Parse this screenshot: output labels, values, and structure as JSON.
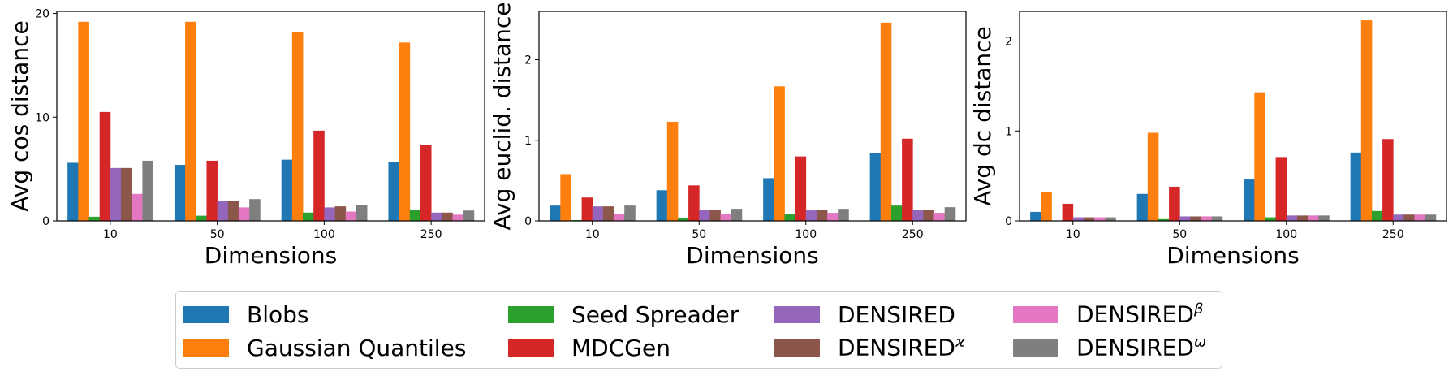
{
  "colors": {
    "Blobs": "#1f77b4",
    "Gaussian Quantiles": "#ff7f0e",
    "Seed Spreader": "#2ca02c",
    "MDCGen": "#d62728",
    "DENSIRED": "#9467bd",
    "DENSIRED^kappa": "#8c564b",
    "DENSIRED^beta": "#e377c2",
    "DENSIRED^omega": "#7f7f7f"
  },
  "legend": [
    {
      "key": "Blobs",
      "base": "Blobs",
      "sup": ""
    },
    {
      "key": "Gaussian Quantiles",
      "base": "Gaussian Quantiles",
      "sup": ""
    },
    {
      "key": "Seed Spreader",
      "base": "Seed Spreader",
      "sup": ""
    },
    {
      "key": "MDCGen",
      "base": "MDCGen",
      "sup": ""
    },
    {
      "key": "DENSIRED",
      "base": "DENSIRED",
      "sup": ""
    },
    {
      "key": "DENSIRED^kappa",
      "base": "DENSIRED",
      "sup": "ϰ"
    },
    {
      "key": "DENSIRED^beta",
      "base": "DENSIRED",
      "sup": "β"
    },
    {
      "key": "DENSIRED^omega",
      "base": "DENSIRED",
      "sup": "ω"
    }
  ],
  "chart_data": [
    {
      "type": "bar",
      "categories": [
        "10",
        "50",
        "100",
        "250"
      ],
      "xlabel": "Dimensions",
      "ylabel": "Avg cos distance",
      "ylim": [
        0,
        20.2
      ],
      "yticks": [
        0,
        10,
        20
      ],
      "series": [
        {
          "key": "Blobs",
          "values": [
            5.6,
            5.4,
            5.9,
            5.7
          ]
        },
        {
          "key": "Gaussian Quantiles",
          "values": [
            19.2,
            19.2,
            18.2,
            17.2
          ]
        },
        {
          "key": "Seed Spreader",
          "values": [
            0.4,
            0.5,
            0.8,
            1.1
          ]
        },
        {
          "key": "MDCGen",
          "values": [
            10.5,
            5.8,
            8.7,
            7.3
          ]
        },
        {
          "key": "DENSIRED",
          "values": [
            5.1,
            1.9,
            1.3,
            0.8
          ]
        },
        {
          "key": "DENSIRED^kappa",
          "values": [
            5.1,
            1.9,
            1.4,
            0.8
          ]
        },
        {
          "key": "DENSIRED^beta",
          "values": [
            2.6,
            1.3,
            0.9,
            0.6
          ]
        },
        {
          "key": "DENSIRED^omega",
          "values": [
            5.8,
            2.1,
            1.5,
            1.0
          ]
        }
      ]
    },
    {
      "type": "bar",
      "categories": [
        "10",
        "50",
        "100",
        "250"
      ],
      "xlabel": "Dimensions",
      "ylabel": "Avg euclid. distance",
      "ylim": [
        0,
        2.6
      ],
      "yticks": [
        0,
        1,
        2
      ],
      "series": [
        {
          "key": "Blobs",
          "values": [
            0.19,
            0.38,
            0.53,
            0.84
          ]
        },
        {
          "key": "Gaussian Quantiles",
          "values": [
            0.58,
            1.23,
            1.67,
            2.46
          ]
        },
        {
          "key": "Seed Spreader",
          "values": [
            0.01,
            0.04,
            0.08,
            0.19
          ]
        },
        {
          "key": "MDCGen",
          "values": [
            0.29,
            0.44,
            0.8,
            1.02
          ]
        },
        {
          "key": "DENSIRED",
          "values": [
            0.18,
            0.14,
            0.13,
            0.14
          ]
        },
        {
          "key": "DENSIRED^kappa",
          "values": [
            0.18,
            0.14,
            0.14,
            0.14
          ]
        },
        {
          "key": "DENSIRED^beta",
          "values": [
            0.09,
            0.09,
            0.1,
            0.1
          ]
        },
        {
          "key": "DENSIRED^omega",
          "values": [
            0.19,
            0.15,
            0.15,
            0.17
          ]
        }
      ]
    },
    {
      "type": "bar",
      "categories": [
        "10",
        "50",
        "100",
        "250"
      ],
      "xlabel": "Dimensions",
      "ylabel": "Avg dc distance",
      "ylim": [
        0,
        2.33
      ],
      "yticks": [
        0,
        1,
        2
      ],
      "series": [
        {
          "key": "Blobs",
          "values": [
            0.1,
            0.3,
            0.46,
            0.76
          ]
        },
        {
          "key": "Gaussian Quantiles",
          "values": [
            0.32,
            0.98,
            1.43,
            2.23
          ]
        },
        {
          "key": "Seed Spreader",
          "values": [
            0.005,
            0.02,
            0.04,
            0.11
          ]
        },
        {
          "key": "MDCGen",
          "values": [
            0.19,
            0.38,
            0.71,
            0.91
          ]
        },
        {
          "key": "DENSIRED",
          "values": [
            0.04,
            0.05,
            0.06,
            0.07
          ]
        },
        {
          "key": "DENSIRED^kappa",
          "values": [
            0.04,
            0.05,
            0.06,
            0.07
          ]
        },
        {
          "key": "DENSIRED^beta",
          "values": [
            0.04,
            0.05,
            0.06,
            0.07
          ]
        },
        {
          "key": "DENSIRED^omega",
          "values": [
            0.04,
            0.05,
            0.06,
            0.07
          ]
        }
      ]
    }
  ]
}
